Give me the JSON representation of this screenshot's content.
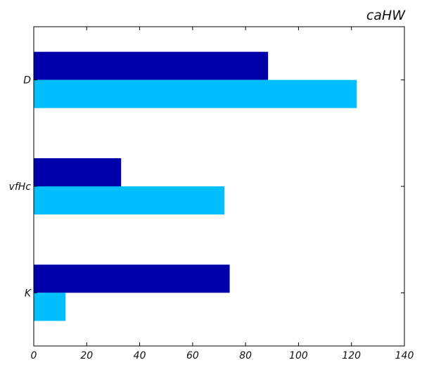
{
  "chart_data": {
    "type": "bar",
    "orientation": "horizontal",
    "title": "caHW",
    "xlabel": "",
    "ylabel": "",
    "categories": [
      "D",
      "vfHc",
      "K"
    ],
    "series": [
      {
        "color": "#0000aa",
        "values": [
          88.5,
          33,
          74
        ]
      },
      {
        "color": "#00bfff",
        "values": [
          122,
          72,
          12
        ]
      }
    ],
    "xlim": [
      0,
      140
    ],
    "xticks": [
      0,
      20,
      40,
      60,
      80,
      100,
      120,
      140
    ],
    "grid": false,
    "legend": "none"
  }
}
